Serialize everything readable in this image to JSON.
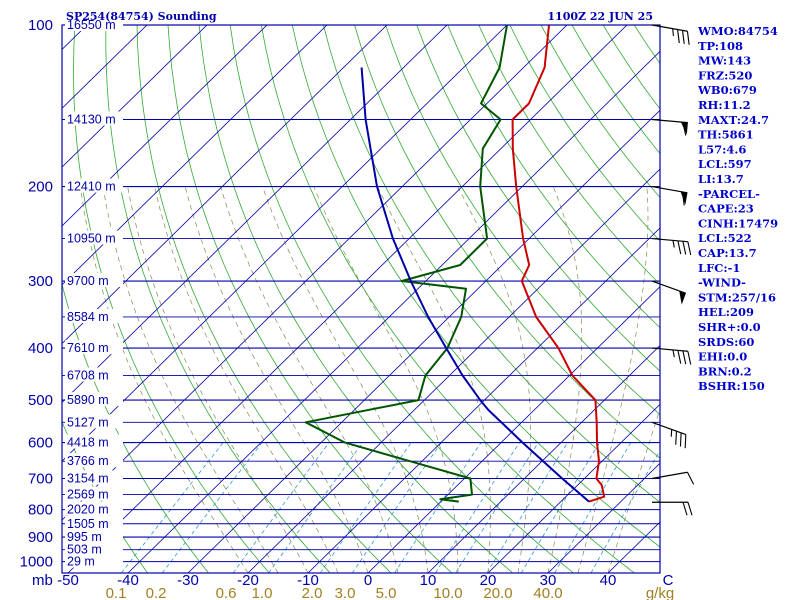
{
  "header": {
    "station": "SP254(84754) Sounding",
    "time": "1100Z 22 JUN 25"
  },
  "indices": [
    "WMO:84754",
    "TP:108",
    "MW:143",
    "FRZ:520",
    "WB0:679",
    "RH:11.2",
    "MAXT:24.7",
    "TH:5861",
    "L57:4.6",
    "LCL:597",
    "LI:13.7",
    "-PARCEL-",
    "CAPE:23",
    "CINH:17479",
    "LCL:522",
    "CAP:13.7",
    "LFC:-1",
    "-WIND-",
    "STM:257/16",
    "HEL:209",
    "SHR+:0.0",
    "SRDS:60",
    "EHI:0.0",
    "BRN:0.2",
    "BSHR:150"
  ],
  "chart_data": {
    "type": "line",
    "title": "SP254(84754) Sounding",
    "ylabel": "mb",
    "xlabel": "C",
    "mixing_ratio_unit": "g/kg",
    "pressure_range_mb": [
      100,
      1000
    ],
    "temperature_range_c": [
      -50,
      50
    ],
    "pressure_ticks": [
      {
        "label": "100",
        "p": 100
      },
      {
        "label": "200",
        "p": 200
      },
      {
        "label": "300",
        "p": 300
      },
      {
        "label": "400",
        "p": 400
      },
      {
        "label": "500",
        "p": 500
      },
      {
        "label": "600",
        "p": 600
      },
      {
        "label": "700",
        "p": 700
      },
      {
        "label": "800",
        "p": 800
      },
      {
        "label": "900",
        "p": 900
      },
      {
        "label": "1000",
        "p": 1000
      }
    ],
    "height_labels": [
      {
        "p": 100,
        "label": "16550 m"
      },
      {
        "p": 150,
        "label": "14130 m"
      },
      {
        "p": 200,
        "label": "12410 m"
      },
      {
        "p": 250,
        "label": "10950 m"
      },
      {
        "p": 300,
        "label": "9700 m"
      },
      {
        "p": 350,
        "label": "8584 m"
      },
      {
        "p": 400,
        "label": "7610 m"
      },
      {
        "p": 450,
        "label": "6708 m"
      },
      {
        "p": 500,
        "label": "5890 m"
      },
      {
        "p": 550,
        "label": "5127 m"
      },
      {
        "p": 600,
        "label": "4418 m"
      },
      {
        "p": 650,
        "label": "3766 m"
      },
      {
        "p": 700,
        "label": "3154 m"
      },
      {
        "p": 750,
        "label": "2569 m"
      },
      {
        "p": 800,
        "label": "2020 m"
      },
      {
        "p": 850,
        "label": "1505 m"
      },
      {
        "p": 900,
        "label": "995 m"
      },
      {
        "p": 950,
        "label": "503 m"
      },
      {
        "p": 1000,
        "label": "29 m"
      }
    ],
    "temperature_ticks": [
      {
        "label": "-50",
        "t": -50
      },
      {
        "label": "-40",
        "t": -40
      },
      {
        "label": "-30",
        "t": -30
      },
      {
        "label": "-20",
        "t": -20
      },
      {
        "label": "-10",
        "t": -10
      },
      {
        "label": "0",
        "t": 0
      },
      {
        "label": "10",
        "t": 10
      },
      {
        "label": "20",
        "t": 20
      },
      {
        "label": "30",
        "t": 30
      },
      {
        "label": "40",
        "t": 40
      },
      {
        "label": "C",
        "t": 50
      }
    ],
    "mixing_ratio_labels": [
      "0.1",
      "0.2",
      "0.6",
      "1.0",
      "2.0",
      "3.0",
      "5.0",
      "10.0",
      "20.0",
      "40.0",
      "g/kg"
    ],
    "series": [
      {
        "name": "Temperature",
        "color": "#cc0000",
        "points": [
          {
            "p": 773,
            "t": 24.7
          },
          {
            "p": 757,
            "t": 26.4
          },
          {
            "p": 720,
            "t": 24.0
          },
          {
            "p": 700,
            "t": 22.0
          },
          {
            "p": 650,
            "t": 19.5
          },
          {
            "p": 600,
            "t": 16.0
          },
          {
            "p": 550,
            "t": 12.5
          },
          {
            "p": 500,
            "t": 8.5
          },
          {
            "p": 450,
            "t": 0.5
          },
          {
            "p": 400,
            "t": -6.5
          },
          {
            "p": 350,
            "t": -15.5
          },
          {
            "p": 300,
            "t": -24.0
          },
          {
            "p": 280,
            "t": -25.5
          },
          {
            "p": 250,
            "t": -31.0
          },
          {
            "p": 200,
            "t": -41.0
          },
          {
            "p": 170,
            "t": -48.0
          },
          {
            "p": 150,
            "t": -53.0
          },
          {
            "p": 140,
            "t": -53.0
          },
          {
            "p": 120,
            "t": -56.5
          },
          {
            "p": 100,
            "t": -63.0
          }
        ]
      },
      {
        "name": "Dewpoint",
        "color": "#005500",
        "points": [
          {
            "p": 773,
            "t": 3.0
          },
          {
            "p": 765,
            "t": -0.5
          },
          {
            "p": 750,
            "t": 4.0
          },
          {
            "p": 700,
            "t": 1.0
          },
          {
            "p": 650,
            "t": -12.0
          },
          {
            "p": 600,
            "t": -26.0
          },
          {
            "p": 550,
            "t": -36.0
          },
          {
            "p": 500,
            "t": -21.0
          },
          {
            "p": 450,
            "t": -24.0
          },
          {
            "p": 400,
            "t": -25.0
          },
          {
            "p": 350,
            "t": -28.0
          },
          {
            "p": 310,
            "t": -32.0
          },
          {
            "p": 300,
            "t": -44.0
          },
          {
            "p": 280,
            "t": -37.0
          },
          {
            "p": 250,
            "t": -37.0
          },
          {
            "p": 200,
            "t": -47.0
          },
          {
            "p": 170,
            "t": -53.0
          },
          {
            "p": 150,
            "t": -55.0
          },
          {
            "p": 140,
            "t": -61.0
          },
          {
            "p": 120,
            "t": -64.0
          },
          {
            "p": 100,
            "t": -70.0
          }
        ]
      },
      {
        "name": "Parcel",
        "color": "#0000aa",
        "points": [
          {
            "p": 773,
            "t": 24.7
          },
          {
            "p": 700,
            "t": 16.3
          },
          {
            "p": 600,
            "t": 3.6
          },
          {
            "p": 522,
            "t": -7.6
          },
          {
            "p": 500,
            "t": -10.7
          },
          {
            "p": 450,
            "t": -17.8
          },
          {
            "p": 400,
            "t": -25.2
          },
          {
            "p": 350,
            "t": -33.5
          },
          {
            "p": 300,
            "t": -42.5
          },
          {
            "p": 250,
            "t": -52.7
          },
          {
            "p": 200,
            "t": -64.2
          },
          {
            "p": 150,
            "t": -77.5
          },
          {
            "p": 120,
            "t": -87.0
          }
        ]
      }
    ],
    "wind_barbs": [
      {
        "p": 100,
        "dir": 280,
        "kt": 35
      },
      {
        "p": 150,
        "dir": 275,
        "kt": 60
      },
      {
        "p": 200,
        "dir": 280,
        "kt": 60
      },
      {
        "p": 250,
        "dir": 275,
        "kt": 35
      },
      {
        "p": 300,
        "dir": 290,
        "kt": 50
      },
      {
        "p": 400,
        "dir": 275,
        "kt": 35
      },
      {
        "p": 550,
        "dir": 290,
        "kt": 35
      },
      {
        "p": 700,
        "dir": 260,
        "kt": 10
      },
      {
        "p": 775,
        "dir": 270,
        "kt": 20
      }
    ],
    "grid": true
  }
}
